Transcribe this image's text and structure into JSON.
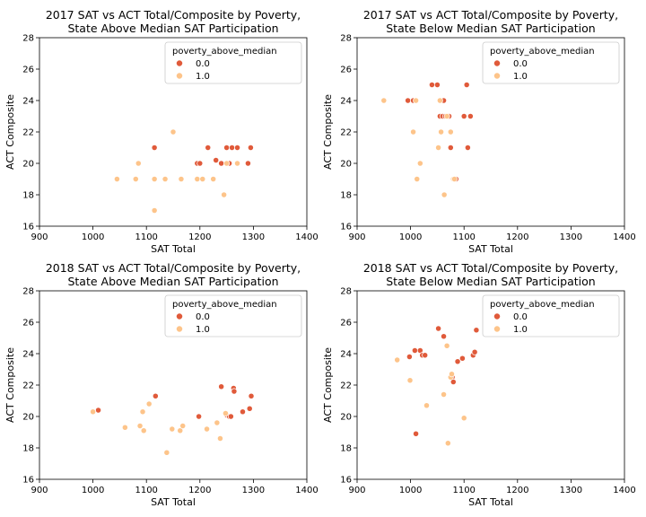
{
  "colors": {
    "poverty_0": "#e05a3a",
    "poverty_1": "#fdc48a"
  },
  "chart_data": [
    {
      "type": "scatter",
      "title": "2017 SAT vs ACT Total/Composite by Poverty,\nState Above Median SAT Participation",
      "xlabel": "SAT Total",
      "ylabel": "ACT Composite",
      "xlim": [
        900,
        1400
      ],
      "ylim": [
        16,
        28
      ],
      "xticks": [
        900,
        1000,
        1100,
        1200,
        1300,
        1400
      ],
      "yticks": [
        16,
        18,
        20,
        22,
        24,
        26,
        28
      ],
      "grid": false,
      "legend_position": "top-right",
      "legend_title": "poverty_above_median",
      "series": [
        {
          "name": "0.0",
          "color": "#e05a3a",
          "points": [
            [
              1115,
              21
            ],
            [
              1195,
              20
            ],
            [
              1200,
              20
            ],
            [
              1215,
              21
            ],
            [
              1230,
              20.2
            ],
            [
              1240,
              20
            ],
            [
              1250,
              21
            ],
            [
              1255,
              20
            ],
            [
              1260,
              21
            ],
            [
              1270,
              21
            ],
            [
              1290,
              20
            ],
            [
              1295,
              21
            ]
          ]
        },
        {
          "name": "1.0",
          "color": "#fdc48a",
          "points": [
            [
              1045,
              19
            ],
            [
              1080,
              19
            ],
            [
              1085,
              20
            ],
            [
              1115,
              19
            ],
            [
              1115,
              17
            ],
            [
              1135,
              19
            ],
            [
              1150,
              22
            ],
            [
              1165,
              19
            ],
            [
              1195,
              19
            ],
            [
              1205,
              19
            ],
            [
              1225,
              19
            ],
            [
              1245,
              18
            ],
            [
              1250,
              20
            ],
            [
              1270,
              20
            ]
          ]
        }
      ]
    },
    {
      "type": "scatter",
      "title": "2017 SAT vs ACT Total/Composite by Poverty,\nState Below Median SAT Participation",
      "xlabel": "SAT Total",
      "ylabel": "ACT Composite",
      "xlim": [
        900,
        1400
      ],
      "ylim": [
        16,
        28
      ],
      "xticks": [
        900,
        1000,
        1100,
        1200,
        1300,
        1400
      ],
      "yticks": [
        16,
        18,
        20,
        22,
        24,
        26,
        28
      ],
      "grid": false,
      "legend_position": "top-right",
      "legend_title": "poverty_above_median",
      "series": [
        {
          "name": "0.0",
          "color": "#e05a3a",
          "points": [
            [
              995,
              24
            ],
            [
              1005,
              24
            ],
            [
              1040,
              25
            ],
            [
              1050,
              25
            ],
            [
              1055,
              23
            ],
            [
              1060,
              23
            ],
            [
              1062,
              24
            ],
            [
              1065,
              23
            ],
            [
              1072,
              23
            ],
            [
              1075,
              21
            ],
            [
              1085,
              19
            ],
            [
              1100,
              23
            ],
            [
              1105,
              25
            ],
            [
              1107,
              21
            ],
            [
              1112,
              23
            ]
          ]
        },
        {
          "name": "1.0",
          "color": "#fdc48a",
          "points": [
            [
              950,
              24
            ],
            [
              1005,
              22
            ],
            [
              1010,
              24
            ],
            [
              1012,
              19
            ],
            [
              1018,
              20
            ],
            [
              1052,
              21
            ],
            [
              1055,
              24
            ],
            [
              1057,
              22
            ],
            [
              1063,
              18
            ],
            [
              1068,
              23
            ],
            [
              1075,
              22
            ],
            [
              1080,
              19
            ],
            [
              1082,
              19
            ]
          ]
        }
      ]
    },
    {
      "type": "scatter",
      "title": "2018 SAT vs ACT Total/Composite by Poverty,\nState Above Median SAT Participation",
      "xlabel": "SAT Total",
      "ylabel": "ACT Composite",
      "xlim": [
        900,
        1400
      ],
      "ylim": [
        16,
        28
      ],
      "xticks": [
        900,
        1000,
        1100,
        1200,
        1300,
        1400
      ],
      "yticks": [
        16,
        18,
        20,
        22,
        24,
        26,
        28
      ],
      "grid": false,
      "legend_position": "top-right",
      "legend_title": "poverty_above_median",
      "series": [
        {
          "name": "0.0",
          "color": "#e05a3a",
          "points": [
            [
              1010,
              20.4
            ],
            [
              1117,
              21.3
            ],
            [
              1198,
              20
            ],
            [
              1240,
              21.9
            ],
            [
              1250,
              20.1
            ],
            [
              1255,
              20
            ],
            [
              1258,
              20
            ],
            [
              1263,
              21.8
            ],
            [
              1264,
              21.6
            ],
            [
              1280,
              20.3
            ],
            [
              1293,
              20.5
            ],
            [
              1296,
              21.3
            ]
          ]
        },
        {
          "name": "1.0",
          "color": "#fdc48a",
          "points": [
            [
              1000,
              20.3
            ],
            [
              1060,
              19.3
            ],
            [
              1088,
              19.4
            ],
            [
              1093,
              20.3
            ],
            [
              1095,
              19.1
            ],
            [
              1105,
              20.8
            ],
            [
              1138,
              17.7
            ],
            [
              1148,
              19.2
            ],
            [
              1163,
              19.1
            ],
            [
              1168,
              19.4
            ],
            [
              1213,
              19.2
            ],
            [
              1232,
              19.6
            ],
            [
              1238,
              18.6
            ],
            [
              1248,
              20.2
            ]
          ]
        }
      ]
    },
    {
      "type": "scatter",
      "title": "2018 SAT vs ACT Total/Composite by Poverty,\nState Below Median SAT Participation",
      "xlabel": "SAT Total",
      "ylabel": "ACT Composite",
      "xlim": [
        900,
        1400
      ],
      "ylim": [
        16,
        28
      ],
      "xticks": [
        900,
        1000,
        1100,
        1200,
        1300,
        1400
      ],
      "yticks": [
        16,
        18,
        20,
        22,
        24,
        26,
        28
      ],
      "grid": false,
      "legend_position": "top-right",
      "legend_title": "poverty_above_median",
      "series": [
        {
          "name": "0.0",
          "color": "#e05a3a",
          "points": [
            [
              998,
              23.8
            ],
            [
              1008,
              24.2
            ],
            [
              1010,
              18.9
            ],
            [
              1018,
              24.2
            ],
            [
              1022,
              23.9
            ],
            [
              1027,
              23.9
            ],
            [
              1052,
              25.6
            ],
            [
              1062,
              25.1
            ],
            [
              1078,
              22.5
            ],
            [
              1080,
              22.2
            ],
            [
              1088,
              23.5
            ],
            [
              1097,
              23.7
            ],
            [
              1117,
              23.9
            ],
            [
              1120,
              24.1
            ],
            [
              1123,
              25.5
            ]
          ]
        },
        {
          "name": "1.0",
          "color": "#fdc48a",
          "points": [
            [
              975,
              23.6
            ],
            [
              999,
              22.3
            ],
            [
              1030,
              20.7
            ],
            [
              1062,
              21.4
            ],
            [
              1068,
              24.5
            ],
            [
              1070,
              18.3
            ],
            [
              1075,
              22.5
            ],
            [
              1077,
              22.7
            ],
            [
              1100,
              19.9
            ]
          ]
        }
      ]
    }
  ]
}
